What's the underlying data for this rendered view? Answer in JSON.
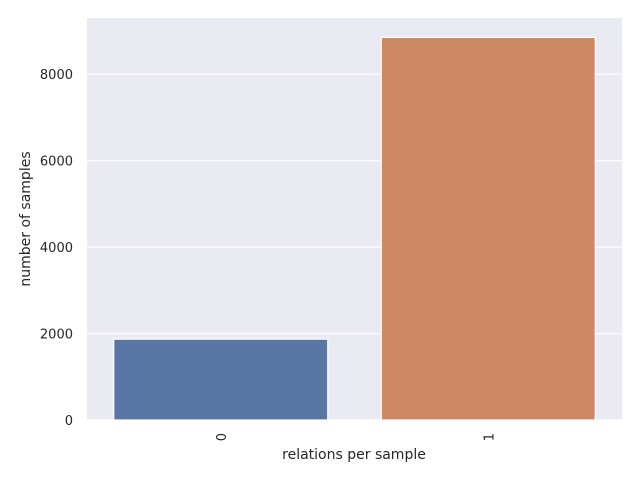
{
  "chart_data": {
    "type": "bar",
    "categories": [
      "0",
      "1"
    ],
    "values": [
      1870,
      8850
    ],
    "xlabel": "relations per sample",
    "ylabel": "number of samples",
    "ylim": [
      0,
      9300
    ],
    "yticks": [
      0,
      2000,
      4000,
      6000,
      8000
    ],
    "ytick_labels": [
      "0",
      "2000",
      "4000",
      "6000",
      "8000"
    ],
    "xtick_rotation": "vertical",
    "grid": true,
    "colors": {
      "background": "#EAEAF2",
      "grid": "#FFFFFF",
      "bars": [
        "#5975A4",
        "#CC8963"
      ],
      "bar_edge": "#FFFFFF"
    }
  }
}
